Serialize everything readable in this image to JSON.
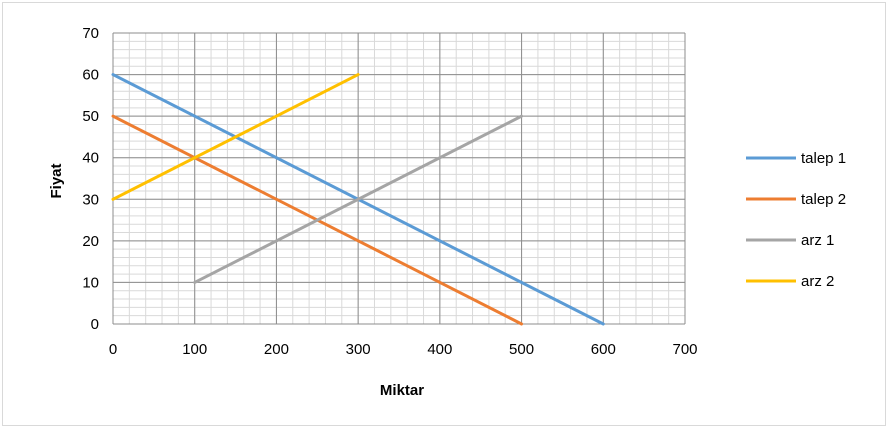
{
  "chart_data": {
    "type": "line",
    "title": "",
    "xlabel": "Miktar",
    "ylabel": "Fiyat",
    "xlim": [
      0,
      700
    ],
    "ylim": [
      0,
      70
    ],
    "x_ticks": [
      0,
      100,
      200,
      300,
      400,
      500,
      600,
      700
    ],
    "y_ticks": [
      0,
      10,
      20,
      30,
      40,
      50,
      60,
      70
    ],
    "grid": true,
    "legend_position": "right",
    "series": [
      {
        "name": "talep 1",
        "color": "#5b9bd5",
        "points": [
          [
            0,
            60
          ],
          [
            600,
            0
          ]
        ]
      },
      {
        "name": "talep 2",
        "color": "#ed7d31",
        "points": [
          [
            0,
            50
          ],
          [
            500,
            0
          ]
        ]
      },
      {
        "name": "arz 1",
        "color": "#a5a5a5",
        "points": [
          [
            100,
            10
          ],
          [
            500,
            50
          ]
        ]
      },
      {
        "name": "arz 2",
        "color": "#ffc000",
        "points": [
          [
            0,
            30
          ],
          [
            300,
            60
          ]
        ]
      }
    ]
  }
}
